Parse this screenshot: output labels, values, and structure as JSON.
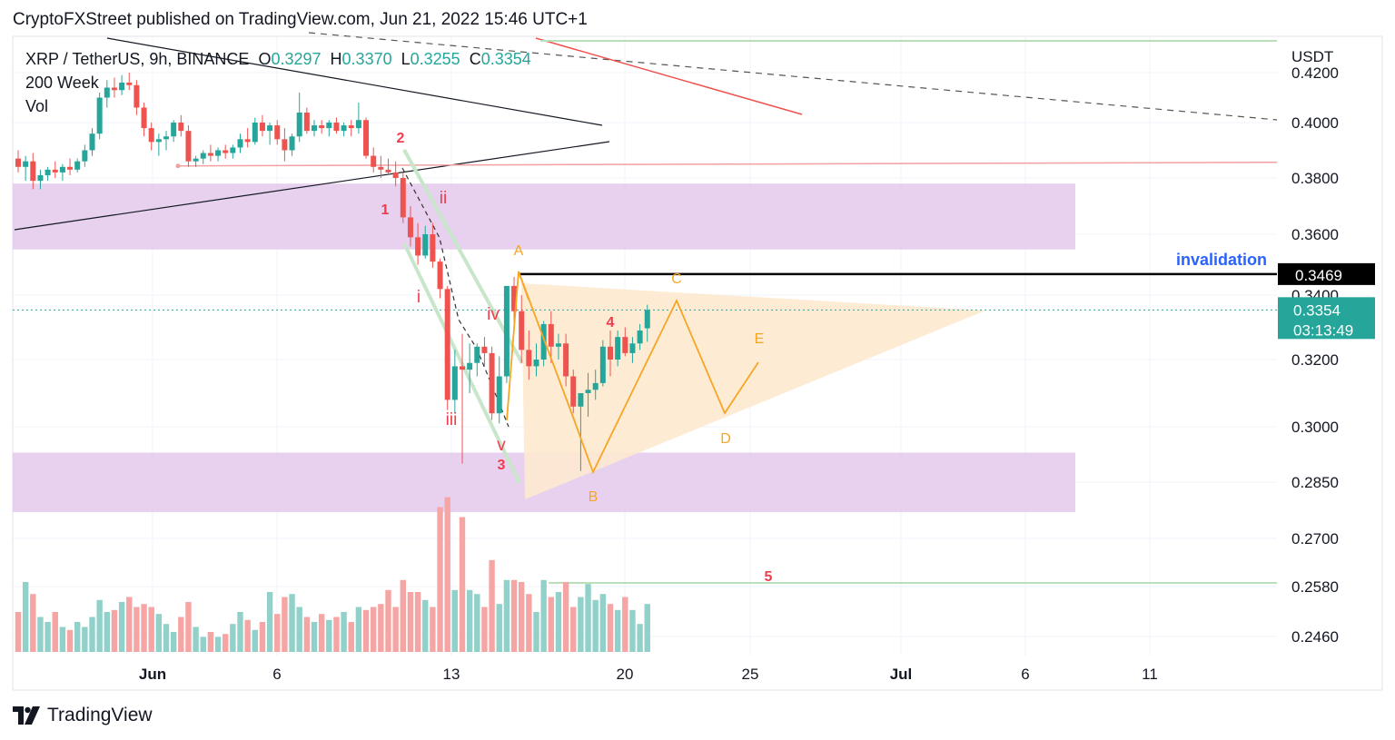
{
  "header": {
    "published": "CryptoFXStreet published on TradingView.com, Jun 21, 2022 15:46 UTC+1"
  },
  "legend": {
    "symbol": "XRP / TetherUS, 9h, BINANCE",
    "o_label": "O",
    "o_value": "0.3297",
    "h_label": "H",
    "h_value": "0.3370",
    "l_label": "L",
    "l_value": "0.3255",
    "c_label": "C",
    "c_value": "0.3354",
    "indicator": "200 Week",
    "vol": "Vol"
  },
  "footer": {
    "brand": "TradingView"
  },
  "colors": {
    "up": "#26a69a",
    "down": "#ef5350",
    "vol_up": "#92d1c9",
    "vol_down": "#f5a6a4",
    "zone": "#e3c9ec",
    "triangle": "#fde9cf",
    "elliott_red": "#ef3b4c",
    "elliott_orange": "#f6a623"
  },
  "chart_data": {
    "type": "candlestick",
    "currency": "USDT",
    "y_ticks": [
      "0.4200",
      "0.4000",
      "0.3800",
      "0.3600",
      "0.3400",
      "0.3200",
      "0.3000",
      "0.2850",
      "0.2700",
      "0.2580",
      "0.2460"
    ],
    "x_ticks": [
      "Jun",
      "6",
      "13",
      "20",
      "25",
      "Jul",
      "6",
      "11"
    ],
    "invalidation_label": "invalidation",
    "invalidation_level": "0.3469",
    "last_price": "0.3354",
    "countdown": "03:13:49",
    "resistance_level": 0.385,
    "zones": [
      {
        "from": 0.355,
        "to": 0.378
      },
      {
        "from": 0.277,
        "to": 0.293
      }
    ],
    "candles": [
      [
        0.387,
        0.39,
        0.382,
        0.384
      ],
      [
        0.384,
        0.388,
        0.379,
        0.386
      ],
      [
        0.386,
        0.389,
        0.376,
        0.379
      ],
      [
        0.379,
        0.383,
        0.376,
        0.381
      ],
      [
        0.381,
        0.384,
        0.379,
        0.383
      ],
      [
        0.383,
        0.386,
        0.38,
        0.382
      ],
      [
        0.382,
        0.385,
        0.379,
        0.384
      ],
      [
        0.384,
        0.387,
        0.381,
        0.383
      ],
      [
        0.383,
        0.387,
        0.382,
        0.386
      ],
      [
        0.386,
        0.392,
        0.384,
        0.39
      ],
      [
        0.39,
        0.398,
        0.388,
        0.396
      ],
      [
        0.396,
        0.412,
        0.394,
        0.41
      ],
      [
        0.41,
        0.417,
        0.406,
        0.414
      ],
      [
        0.414,
        0.418,
        0.41,
        0.413
      ],
      [
        0.413,
        0.419,
        0.411,
        0.416
      ],
      [
        0.416,
        0.42,
        0.413,
        0.415
      ],
      [
        0.415,
        0.417,
        0.403,
        0.406
      ],
      [
        0.406,
        0.408,
        0.395,
        0.398
      ],
      [
        0.398,
        0.4,
        0.39,
        0.393
      ],
      [
        0.393,
        0.396,
        0.388,
        0.394
      ],
      [
        0.394,
        0.397,
        0.39,
        0.395
      ],
      [
        0.395,
        0.401,
        0.393,
        0.4
      ],
      [
        0.4,
        0.403,
        0.395,
        0.397
      ],
      [
        0.397,
        0.399,
        0.384,
        0.386
      ],
      [
        0.386,
        0.388,
        0.384,
        0.387
      ],
      [
        0.387,
        0.39,
        0.385,
        0.389
      ],
      [
        0.389,
        0.392,
        0.386,
        0.388
      ],
      [
        0.388,
        0.391,
        0.386,
        0.39
      ],
      [
        0.39,
        0.392,
        0.387,
        0.389
      ],
      [
        0.389,
        0.392,
        0.387,
        0.391
      ],
      [
        0.391,
        0.396,
        0.389,
        0.394
      ],
      [
        0.394,
        0.398,
        0.391,
        0.393
      ],
      [
        0.393,
        0.402,
        0.392,
        0.4
      ],
      [
        0.4,
        0.403,
        0.395,
        0.397
      ],
      [
        0.397,
        0.4,
        0.392,
        0.399
      ],
      [
        0.399,
        0.401,
        0.392,
        0.394
      ],
      [
        0.394,
        0.398,
        0.386,
        0.39
      ],
      [
        0.39,
        0.396,
        0.388,
        0.395
      ],
      [
        0.395,
        0.412,
        0.393,
        0.404
      ],
      [
        0.404,
        0.406,
        0.396,
        0.397
      ],
      [
        0.397,
        0.401,
        0.395,
        0.399
      ],
      [
        0.399,
        0.401,
        0.396,
        0.398
      ],
      [
        0.398,
        0.401,
        0.395,
        0.4
      ],
      [
        0.4,
        0.402,
        0.396,
        0.397
      ],
      [
        0.397,
        0.4,
        0.395,
        0.399
      ],
      [
        0.399,
        0.401,
        0.395,
        0.398
      ],
      [
        0.398,
        0.408,
        0.396,
        0.401
      ],
      [
        0.401,
        0.402,
        0.387,
        0.388
      ],
      [
        0.388,
        0.391,
        0.382,
        0.384
      ],
      [
        0.384,
        0.388,
        0.38,
        0.383
      ],
      [
        0.383,
        0.387,
        0.381,
        0.382
      ],
      [
        0.382,
        0.386,
        0.377,
        0.38
      ],
      [
        0.38,
        0.382,
        0.364,
        0.366
      ],
      [
        0.366,
        0.37,
        0.356,
        0.359
      ],
      [
        0.359,
        0.364,
        0.35,
        0.353
      ],
      [
        0.353,
        0.363,
        0.352,
        0.36
      ],
      [
        0.36,
        0.364,
        0.349,
        0.351
      ],
      [
        0.351,
        0.352,
        0.339,
        0.342
      ],
      [
        0.342,
        0.343,
        0.305,
        0.308
      ],
      [
        0.308,
        0.323,
        0.304,
        0.318
      ],
      [
        0.318,
        0.328,
        0.29,
        0.317
      ],
      [
        0.317,
        0.325,
        0.31,
        0.319
      ],
      [
        0.319,
        0.325,
        0.315,
        0.324
      ],
      [
        0.324,
        0.327,
        0.318,
        0.322
      ],
      [
        0.322,
        0.324,
        0.302,
        0.304
      ],
      [
        0.304,
        0.321,
        0.301,
        0.315
      ],
      [
        0.315,
        0.343,
        0.313,
        0.343
      ],
      [
        0.343,
        0.346,
        0.331,
        0.335
      ],
      [
        0.335,
        0.34,
        0.319,
        0.323
      ],
      [
        0.323,
        0.329,
        0.314,
        0.318
      ],
      [
        0.318,
        0.325,
        0.315,
        0.32
      ],
      [
        0.32,
        0.332,
        0.318,
        0.331
      ],
      [
        0.331,
        0.335,
        0.319,
        0.324
      ],
      [
        0.324,
        0.328,
        0.32,
        0.325
      ],
      [
        0.325,
        0.328,
        0.312,
        0.315
      ],
      [
        0.315,
        0.317,
        0.304,
        0.306
      ],
      [
        0.306,
        0.31,
        0.288,
        0.31
      ],
      [
        0.31,
        0.316,
        0.303,
        0.311
      ],
      [
        0.311,
        0.317,
        0.308,
        0.313
      ],
      [
        0.313,
        0.326,
        0.312,
        0.324
      ],
      [
        0.324,
        0.329,
        0.315,
        0.32
      ],
      [
        0.32,
        0.329,
        0.318,
        0.327
      ],
      [
        0.327,
        0.33,
        0.321,
        0.322
      ],
      [
        0.322,
        0.327,
        0.319,
        0.325
      ],
      [
        0.325,
        0.331,
        0.323,
        0.329
      ],
      [
        0.3297,
        0.337,
        0.3255,
        0.3354
      ]
    ],
    "volumes": [
      0.4,
      0.7,
      0.58,
      0.35,
      0.3,
      0.4,
      0.25,
      0.22,
      0.3,
      0.25,
      0.35,
      0.52,
      0.4,
      0.42,
      0.5,
      0.55,
      0.45,
      0.48,
      0.45,
      0.38,
      0.28,
      0.2,
      0.35,
      0.5,
      0.25,
      0.15,
      0.2,
      0.15,
      0.18,
      0.28,
      0.4,
      0.32,
      0.22,
      0.3,
      0.6,
      0.38,
      0.55,
      0.58,
      0.45,
      0.35,
      0.3,
      0.38,
      0.32,
      0.35,
      0.4,
      0.3,
      0.45,
      0.42,
      0.45,
      0.48,
      0.62,
      0.45,
      0.72,
      0.6,
      0.6,
      0.52,
      0.45,
      1.45,
      1.55,
      0.62,
      1.35,
      0.62,
      0.58,
      0.45,
      0.92,
      0.48,
      0.72,
      0.72,
      0.7,
      0.58,
      0.4,
      0.72,
      0.55,
      0.6,
      0.7,
      0.45,
      0.55,
      0.68,
      0.52,
      0.58,
      0.48,
      0.42,
      0.55,
      0.42,
      0.28,
      0.48
    ],
    "labels": {
      "elliott_impulse": [
        "1",
        "2",
        "3",
        "4",
        "5"
      ],
      "elliott_subwaves": [
        "i",
        "ii",
        "iii",
        "iv",
        "v"
      ],
      "triangle": [
        "A",
        "B",
        "C",
        "D",
        "E"
      ]
    }
  }
}
